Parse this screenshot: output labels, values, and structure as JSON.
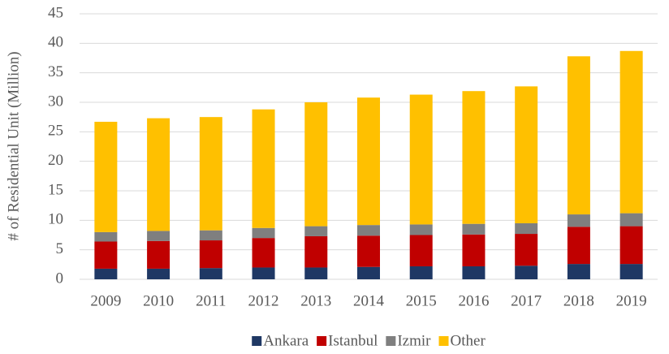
{
  "chart_data": {
    "type": "stacked_bar",
    "y_label": "# of Residential Unit (Million)",
    "categories": [
      "2009",
      "2010",
      "2011",
      "2012",
      "2013",
      "2014",
      "2015",
      "2016",
      "2017",
      "2018",
      "2019"
    ],
    "series": [
      {
        "name": "Ankara",
        "color": "#1f3864",
        "values": [
          1.8,
          1.8,
          1.9,
          2.0,
          2.0,
          2.1,
          2.2,
          2.2,
          2.3,
          2.6,
          2.6
        ]
      },
      {
        "name": "Istanbul",
        "color": "#c00000",
        "values": [
          4.6,
          4.7,
          4.7,
          5.0,
          5.3,
          5.3,
          5.3,
          5.4,
          5.4,
          6.3,
          6.4
        ]
      },
      {
        "name": "Izmir",
        "color": "#7f7f7f",
        "values": [
          1.6,
          1.7,
          1.7,
          1.7,
          1.7,
          1.8,
          1.8,
          1.8,
          1.8,
          2.1,
          2.2
        ]
      },
      {
        "name": "Other",
        "color": "#ffc000",
        "values": [
          18.7,
          19.1,
          19.2,
          20.1,
          21.0,
          21.6,
          22.0,
          22.5,
          23.2,
          26.8,
          27.5
        ]
      }
    ],
    "ylim": [
      0,
      45
    ],
    "yticks": [
      0,
      5,
      10,
      15,
      20,
      25,
      30,
      35,
      40,
      45
    ],
    "grid": true,
    "legend": "bottom"
  }
}
